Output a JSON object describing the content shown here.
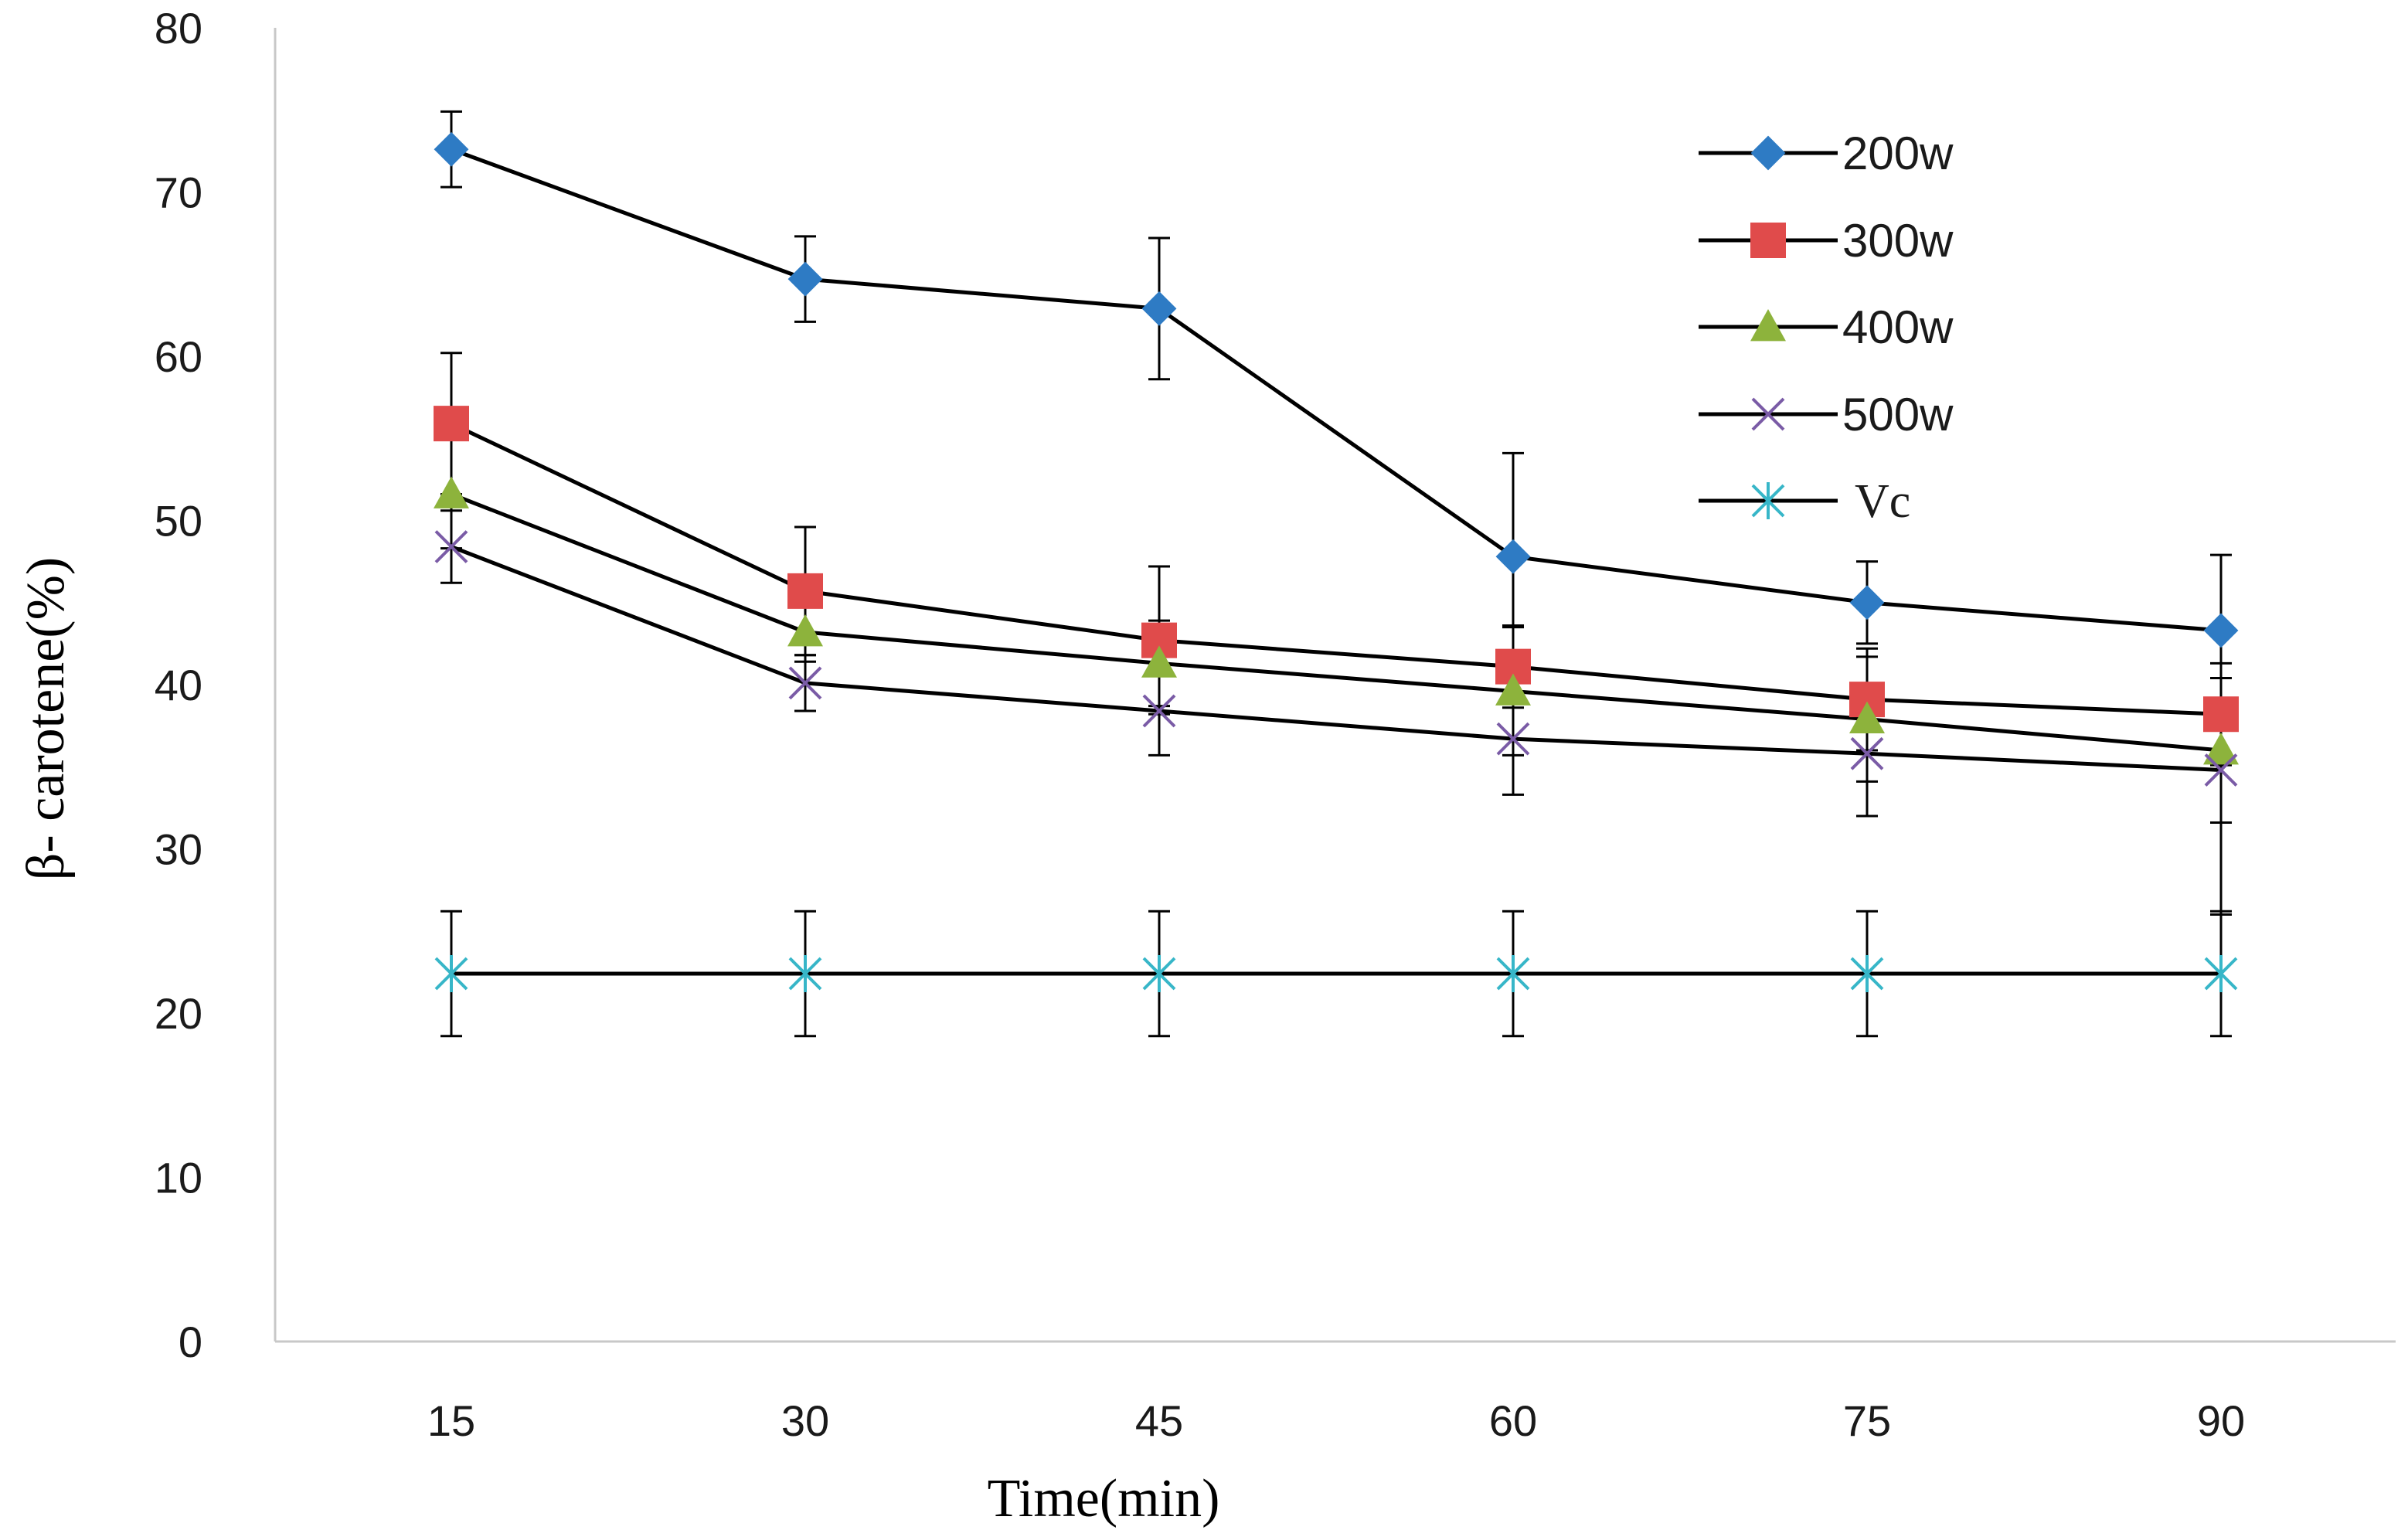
{
  "chart_data": {
    "type": "line",
    "title": "",
    "xlabel": "Time(min)",
    "ylabel": "β- carotene(%)",
    "x": [
      15,
      30,
      45,
      60,
      75,
      90
    ],
    "x_tick_labels": [
      "15",
      "30",
      "45",
      "60",
      "75",
      "90"
    ],
    "ylim": [
      0,
      80
    ],
    "y_ticks": [
      0,
      10,
      20,
      30,
      40,
      50,
      60,
      70,
      80
    ],
    "y_tick_labels": [
      "0",
      "10",
      "20",
      "30",
      "40",
      "50",
      "60",
      "70",
      "80"
    ],
    "grid": false,
    "legend_position": "top-right",
    "series": [
      {
        "name": "200w",
        "marker": "diamond",
        "color": "#2E7BC4",
        "values": [
          72.6,
          64.7,
          62.9,
          47.8,
          45.0,
          43.3
        ],
        "errors": [
          2.3,
          2.6,
          4.3,
          6.3,
          2.5,
          4.6
        ]
      },
      {
        "name": "300w",
        "marker": "square",
        "color": "#E04B4B",
        "values": [
          55.9,
          45.7,
          42.7,
          41.1,
          39.1,
          38.2
        ],
        "errors": [
          4.3,
          3.9,
          4.5,
          2.5,
          3.1,
          3.1
        ]
      },
      {
        "name": "400w",
        "marker": "triangle",
        "color": "#8DB33C",
        "values": [
          51.6,
          43.2,
          41.3,
          39.6,
          37.9,
          36.0
        ],
        "errors": [
          3.3,
          1.8,
          2.6,
          3.9,
          3.8,
          4.4
        ]
      },
      {
        "name": "500w",
        "marker": "cross",
        "color": "#7A5BA6",
        "values": [
          48.4,
          40.1,
          38.4,
          36.7,
          35.8,
          34.8
        ],
        "errors": [
          2.2,
          1.7,
          2.7,
          3.4,
          3.8,
          8.8
        ]
      },
      {
        "name": "Vc",
        "marker": "asterisk",
        "color": "#37B6C8",
        "values": [
          22.4,
          22.4,
          22.4,
          22.4,
          22.4,
          22.4
        ],
        "errors": [
          3.8,
          3.8,
          3.8,
          3.8,
          3.8,
          3.8
        ]
      }
    ]
  }
}
